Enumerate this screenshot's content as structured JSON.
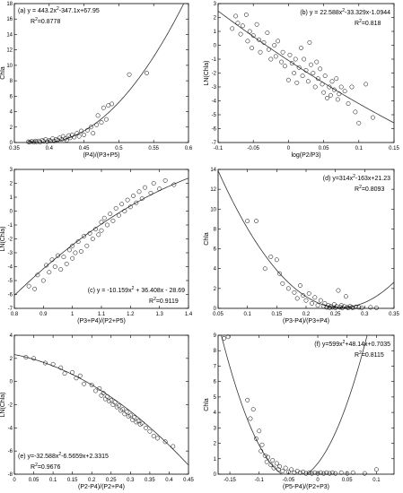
{
  "chart_data": [
    {
      "type": "scatter",
      "panel": "(a)",
      "equation": "y = 443.2x²-347.1x+67.95",
      "r2": "R²=0.8778",
      "xlabel": "(P4)/(P3+P5)",
      "ylabel": "Chla",
      "xlim": [
        0.35,
        0.6
      ],
      "ylim": [
        0,
        18
      ],
      "xticks": [
        0.35,
        0.4,
        0.45,
        0.5,
        0.55,
        0.6
      ],
      "yticks": [
        0,
        2,
        4,
        6,
        8,
        10,
        12,
        14,
        16,
        18
      ],
      "fit": [
        443.2,
        -347.1,
        67.95
      ],
      "fit_range": [
        0.37,
        0.6
      ],
      "ann_pos": "top-left",
      "points": [
        [
          0.37,
          0.1
        ],
        [
          0.372,
          0.05
        ],
        [
          0.375,
          0.15
        ],
        [
          0.378,
          0.05
        ],
        [
          0.38,
          0.2
        ],
        [
          0.382,
          0.1
        ],
        [
          0.385,
          0.2
        ],
        [
          0.387,
          0.05
        ],
        [
          0.39,
          0.3
        ],
        [
          0.392,
          0.15
        ],
        [
          0.395,
          0.4
        ],
        [
          0.397,
          0.1
        ],
        [
          0.4,
          0.3
        ],
        [
          0.402,
          0.2
        ],
        [
          0.405,
          0.5
        ],
        [
          0.407,
          0.2
        ],
        [
          0.41,
          0.4
        ],
        [
          0.412,
          0.3
        ],
        [
          0.415,
          0.6
        ],
        [
          0.418,
          0.4
        ],
        [
          0.42,
          0.8
        ],
        [
          0.423,
          0.5
        ],
        [
          0.425,
          0.3
        ],
        [
          0.428,
          0.9
        ],
        [
          0.43,
          0.6
        ],
        [
          0.433,
          1.0
        ],
        [
          0.436,
          0.7
        ],
        [
          0.44,
          1.2
        ],
        [
          0.443,
          0.8
        ],
        [
          0.446,
          1.5
        ],
        [
          0.45,
          1.0
        ],
        [
          0.455,
          1.6
        ],
        [
          0.46,
          2.0
        ],
        [
          0.463,
          1.2
        ],
        [
          0.468,
          2.3
        ],
        [
          0.47,
          3.5
        ],
        [
          0.475,
          2.6
        ],
        [
          0.478,
          4.5
        ],
        [
          0.482,
          3.0
        ],
        [
          0.485,
          4.8
        ],
        [
          0.49,
          5.0
        ],
        [
          0.515,
          8.8
        ],
        [
          0.54,
          9.0
        ]
      ]
    },
    {
      "type": "scatter",
      "panel": "(b)",
      "equation": "y = 22.588x²-33.329x-1.0944",
      "r2": "R²=0.818",
      "xlabel": "log(P2/P3)",
      "ylabel": "LN(Chla)",
      "xlim": [
        -0.1,
        0.15
      ],
      "ylim": [
        -7,
        3
      ],
      "xticks": [
        -0.1,
        -0.05,
        0,
        0.05,
        0.1,
        0.15
      ],
      "xticklabels": [
        "-0.1",
        "-0.05",
        "0",
        "0.05",
        "0.1",
        "0.15"
      ],
      "yticks": [
        -7,
        -6,
        -5,
        -4,
        -3,
        -2,
        -1,
        0,
        1,
        2,
        3
      ],
      "fit": [
        22.588,
        -33.329,
        -1.0944
      ],
      "fit_range": [
        -0.1,
        0.15
      ],
      "ann_pos": "top-right",
      "points": [
        [
          -0.08,
          1.2
        ],
        [
          -0.075,
          2.1
        ],
        [
          -0.072,
          1.6
        ],
        [
          -0.068,
          0.8
        ],
        [
          -0.065,
          1.4
        ],
        [
          -0.06,
          2.2
        ],
        [
          -0.058,
          0.3
        ],
        [
          -0.055,
          1.0
        ],
        [
          -0.052,
          -0.2
        ],
        [
          -0.05,
          0.7
        ],
        [
          -0.045,
          1.5
        ],
        [
          -0.042,
          0.4
        ],
        [
          -0.04,
          -0.5
        ],
        [
          -0.035,
          0.2
        ],
        [
          -0.03,
          0.9
        ],
        [
          -0.028,
          -0.3
        ],
        [
          -0.025,
          -1.0
        ],
        [
          -0.02,
          0.0
        ],
        [
          -0.018,
          -0.8
        ],
        [
          -0.015,
          0.3
        ],
        [
          -0.01,
          -1.2
        ],
        [
          -0.008,
          -0.5
        ],
        [
          -0.005,
          -1.5
        ],
        [
          0.0,
          -2.5
        ],
        [
          0.002,
          -0.7
        ],
        [
          0.005,
          -1.3
        ],
        [
          0.008,
          -2.0
        ],
        [
          0.01,
          -1.0
        ],
        [
          0.012,
          -2.7
        ],
        [
          0.015,
          -1.6
        ],
        [
          0.018,
          -0.2
        ],
        [
          0.02,
          -2.2
        ],
        [
          0.022,
          -1.0
        ],
        [
          0.025,
          -1.8
        ],
        [
          0.028,
          -2.6
        ],
        [
          0.03,
          0.2
        ],
        [
          0.032,
          -1.4
        ],
        [
          0.035,
          -2.0
        ],
        [
          0.038,
          -3.0
        ],
        [
          0.04,
          -1.2
        ],
        [
          0.042,
          -2.4
        ],
        [
          0.045,
          -1.7
        ],
        [
          0.048,
          -2.8
        ],
        [
          0.05,
          -3.4
        ],
        [
          0.052,
          -2.2
        ],
        [
          0.055,
          -3.8
        ],
        [
          0.058,
          -3.0
        ],
        [
          0.06,
          -3.6
        ],
        [
          0.062,
          -2.6
        ],
        [
          0.065,
          -3.2
        ],
        [
          0.068,
          -2.4
        ],
        [
          0.07,
          -3.9
        ],
        [
          0.072,
          -3.5
        ],
        [
          0.075,
          -3.0
        ],
        [
          0.08,
          -3.3
        ],
        [
          0.085,
          -4.2
        ],
        [
          0.09,
          -3.0
        ],
        [
          0.095,
          -4.8
        ],
        [
          0.1,
          -5.6
        ],
        [
          0.11,
          -2.8
        ],
        [
          0.12,
          -5.2
        ]
      ]
    },
    {
      "type": "scatter",
      "panel": "(c)",
      "equation": "y = -10.159x² + 36.408x - 28.69",
      "r2": "R²=0.9119",
      "xlabel": "(P3+P4)/(P2+P5)",
      "ylabel": "LN(Chla)",
      "xlim": [
        0.8,
        1.4
      ],
      "ylim": [
        -7,
        3
      ],
      "xticks": [
        0.8,
        0.9,
        1.0,
        1.1,
        1.2,
        1.3,
        1.4
      ],
      "xticklabels": [
        "0.8",
        "0.9",
        "1",
        "1.1",
        "1.2",
        "1.3",
        "1.4"
      ],
      "yticks": [
        -7,
        -6,
        -5,
        -4,
        -3,
        -2,
        -1,
        0,
        1,
        2,
        3
      ],
      "fit": [
        -10.159,
        36.408,
        -28.69
      ],
      "fit_range": [
        0.8,
        1.4
      ],
      "ann_pos": "bottom-right",
      "points": [
        [
          0.85,
          -5.4
        ],
        [
          0.87,
          -5.6
        ],
        [
          0.88,
          -4.6
        ],
        [
          0.9,
          -5.0
        ],
        [
          0.91,
          -3.9
        ],
        [
          0.92,
          -4.4
        ],
        [
          0.93,
          -3.5
        ],
        [
          0.94,
          -4.0
        ],
        [
          0.95,
          -3.2
        ],
        [
          0.96,
          -4.2
        ],
        [
          0.97,
          -3.3
        ],
        [
          0.98,
          -3.8
        ],
        [
          0.99,
          -2.8
        ],
        [
          1.0,
          -3.4
        ],
        [
          1.0,
          -2.5
        ],
        [
          1.01,
          -3.0
        ],
        [
          1.02,
          -2.2
        ],
        [
          1.03,
          -2.9
        ],
        [
          1.04,
          -1.8
        ],
        [
          1.05,
          -2.5
        ],
        [
          1.06,
          -1.6
        ],
        [
          1.07,
          -2.0
        ],
        [
          1.08,
          -1.3
        ],
        [
          1.09,
          -1.7
        ],
        [
          1.1,
          -0.8
        ],
        [
          1.1,
          -1.4
        ],
        [
          1.11,
          -0.5
        ],
        [
          1.12,
          -1.0
        ],
        [
          1.13,
          -0.2
        ],
        [
          1.14,
          -0.7
        ],
        [
          1.15,
          0.2
        ],
        [
          1.16,
          -0.3
        ],
        [
          1.17,
          0.5
        ],
        [
          1.18,
          0.0
        ],
        [
          1.19,
          0.8
        ],
        [
          1.2,
          0.3
        ],
        [
          1.21,
          1.1
        ],
        [
          1.22,
          0.6
        ],
        [
          1.23,
          1.4
        ],
        [
          1.24,
          0.9
        ],
        [
          1.25,
          1.7
        ],
        [
          1.27,
          1.3
        ],
        [
          1.28,
          2.0
        ],
        [
          1.3,
          1.6
        ],
        [
          1.32,
          2.2
        ],
        [
          1.35,
          1.9
        ]
      ]
    },
    {
      "type": "scatter",
      "panel": "(d)",
      "equation": "y=314x²-163x+21.23",
      "r2": "R²=0.8093",
      "xlabel": "(P3-P4)/(P3+P4)",
      "ylabel": "Chla",
      "xlim": [
        0.05,
        0.35
      ],
      "ylim": [
        0,
        14
      ],
      "xticks": [
        0.05,
        0.1,
        0.15,
        0.2,
        0.25,
        0.3,
        0.35
      ],
      "yticks": [
        0,
        2,
        4,
        6,
        8,
        10,
        12,
        14
      ],
      "fit": [
        314,
        -163,
        21.23
      ],
      "fit_range": [
        0.05,
        0.35
      ],
      "ann_pos": "top-right",
      "points": [
        [
          0.1,
          8.8
        ],
        [
          0.115,
          8.8
        ],
        [
          0.13,
          4.0
        ],
        [
          0.14,
          5.2
        ],
        [
          0.15,
          4.9
        ],
        [
          0.155,
          3.5
        ],
        [
          0.16,
          2.5
        ],
        [
          0.17,
          2.0
        ],
        [
          0.18,
          1.6
        ],
        [
          0.185,
          1.0
        ],
        [
          0.19,
          2.3
        ],
        [
          0.195,
          1.3
        ],
        [
          0.2,
          0.8
        ],
        [
          0.205,
          1.5
        ],
        [
          0.21,
          0.5
        ],
        [
          0.215,
          1.1
        ],
        [
          0.22,
          0.3
        ],
        [
          0.225,
          0.8
        ],
        [
          0.23,
          0.2
        ],
        [
          0.232,
          0.5
        ],
        [
          0.235,
          0.1
        ],
        [
          0.238,
          0.3
        ],
        [
          0.24,
          0.05
        ],
        [
          0.242,
          0.2
        ],
        [
          0.245,
          0.1
        ],
        [
          0.248,
          0.4
        ],
        [
          0.25,
          0.05
        ],
        [
          0.252,
          0.2
        ],
        [
          0.255,
          1.8
        ],
        [
          0.258,
          0.1
        ],
        [
          0.26,
          0.3
        ],
        [
          0.262,
          0.05
        ],
        [
          0.265,
          0.2
        ],
        [
          0.268,
          1.2
        ],
        [
          0.27,
          0.1
        ],
        [
          0.272,
          0.05
        ],
        [
          0.275,
          0.2
        ],
        [
          0.278,
          0.1
        ],
        [
          0.28,
          0.05
        ],
        [
          0.285,
          0.15
        ],
        [
          0.29,
          0.1
        ],
        [
          0.295,
          0.05
        ],
        [
          0.31,
          0.1
        ],
        [
          0.32,
          0.05
        ]
      ]
    },
    {
      "type": "scatter",
      "panel": "(e)",
      "equation": "y=-32.588x²-6.5659x+2.3315",
      "r2": "R²=0.9676",
      "xlabel": "(P2-P4)/(P2+P4)",
      "ylabel": "LN(Chla)",
      "xlim": [
        0,
        0.45
      ],
      "ylim": [
        -8,
        4
      ],
      "xticks": [
        0,
        0.05,
        0.1,
        0.15,
        0.2,
        0.25,
        0.3,
        0.35,
        0.4,
        0.45
      ],
      "yticks": [
        -8,
        -6,
        -4,
        -2,
        0,
        2,
        4
      ],
      "fit": [
        -32.588,
        -6.5659,
        2.3315
      ],
      "fit_range": [
        0,
        0.45
      ],
      "ann_pos": "bottom-left",
      "points": [
        [
          0.03,
          2.1
        ],
        [
          0.05,
          2.0
        ],
        [
          0.08,
          1.6
        ],
        [
          0.1,
          1.5
        ],
        [
          0.12,
          1.2
        ],
        [
          0.13,
          0.7
        ],
        [
          0.15,
          0.8
        ],
        [
          0.16,
          0.3
        ],
        [
          0.17,
          0.5
        ],
        [
          0.18,
          -0.2
        ],
        [
          0.2,
          -0.3
        ],
        [
          0.21,
          -0.8
        ],
        [
          0.22,
          -0.6
        ],
        [
          0.225,
          -1.2
        ],
        [
          0.23,
          -1.0
        ],
        [
          0.235,
          -1.5
        ],
        [
          0.24,
          -1.3
        ],
        [
          0.245,
          -1.7
        ],
        [
          0.25,
          -1.6
        ],
        [
          0.255,
          -2.0
        ],
        [
          0.26,
          -1.8
        ],
        [
          0.265,
          -2.2
        ],
        [
          0.27,
          -2.1
        ],
        [
          0.275,
          -2.5
        ],
        [
          0.28,
          -2.4
        ],
        [
          0.285,
          -2.8
        ],
        [
          0.29,
          -2.6
        ],
        [
          0.295,
          -3.0
        ],
        [
          0.3,
          -2.9
        ],
        [
          0.305,
          -3.3
        ],
        [
          0.31,
          -3.1
        ],
        [
          0.315,
          -3.5
        ],
        [
          0.32,
          -3.4
        ],
        [
          0.325,
          -3.7
        ],
        [
          0.33,
          -3.6
        ],
        [
          0.34,
          -4.0
        ],
        [
          0.35,
          -4.3
        ],
        [
          0.36,
          -4.7
        ],
        [
          0.37,
          -4.9
        ],
        [
          0.39,
          -5.2
        ],
        [
          0.41,
          -5.6
        ]
      ]
    },
    {
      "type": "scatter",
      "panel": "(f)",
      "equation": "y=599x²+48.14x+0.7035",
      "r2": "R²=0.8115",
      "xlabel": "(P5-P4)/(P2+P3)",
      "ylabel": "Chla",
      "xlim": [
        -0.17,
        0.13
      ],
      "ylim": [
        0,
        9
      ],
      "xticks": [
        -0.15,
        -0.1,
        -0.05,
        0,
        0.05,
        0.1
      ],
      "xticklabels": [
        "-0.15",
        "-0.1",
        "-0.05",
        "0",
        "0.05",
        "0.1"
      ],
      "yticks": [
        0,
        1,
        2,
        3,
        4,
        5,
        6,
        7,
        8,
        9
      ],
      "fit": [
        599,
        48.14,
        0.7035
      ],
      "fit_range": [
        -0.17,
        0.13
      ],
      "ann_pos": "top-right",
      "points": [
        [
          -0.16,
          8.8
        ],
        [
          -0.153,
          8.9
        ],
        [
          -0.12,
          4.8
        ],
        [
          -0.115,
          3.6
        ],
        [
          -0.11,
          4.2
        ],
        [
          -0.105,
          2.3
        ],
        [
          -0.1,
          2.8
        ],
        [
          -0.097,
          1.5
        ],
        [
          -0.095,
          1.9
        ],
        [
          -0.09,
          1.2
        ],
        [
          -0.087,
          0.8
        ],
        [
          -0.085,
          1.1
        ],
        [
          -0.08,
          0.6
        ],
        [
          -0.077,
          0.9
        ],
        [
          -0.075,
          0.4
        ],
        [
          -0.07,
          0.7
        ],
        [
          -0.067,
          0.3
        ],
        [
          -0.065,
          0.5
        ],
        [
          -0.06,
          0.2
        ],
        [
          -0.055,
          0.4
        ],
        [
          -0.05,
          0.15
        ],
        [
          -0.045,
          0.3
        ],
        [
          -0.04,
          0.1
        ],
        [
          -0.035,
          0.2
        ],
        [
          -0.03,
          0.1
        ],
        [
          -0.025,
          0.15
        ],
        [
          -0.02,
          0.05
        ],
        [
          -0.015,
          0.1
        ],
        [
          -0.01,
          0.05
        ],
        [
          -0.005,
          0.1
        ],
        [
          0.0,
          0.05
        ],
        [
          0.005,
          0.1
        ],
        [
          0.01,
          0.05
        ],
        [
          0.015,
          0.1
        ],
        [
          0.02,
          0.05
        ],
        [
          0.025,
          0.1
        ],
        [
          0.03,
          0.05
        ],
        [
          0.04,
          0.1
        ],
        [
          0.05,
          0.05
        ],
        [
          0.06,
          0.1
        ],
        [
          0.08,
          0.05
        ],
        [
          0.1,
          0.3
        ]
      ]
    }
  ]
}
